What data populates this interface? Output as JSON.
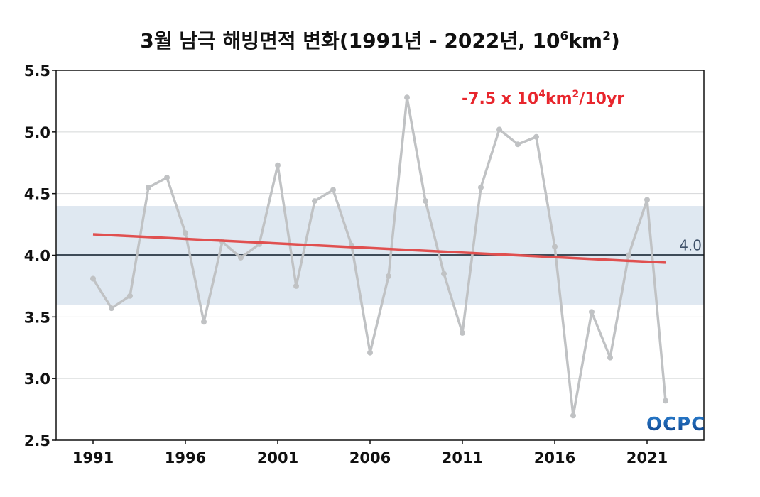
{
  "chart_data": {
    "type": "line",
    "title": {
      "prefix": "3월 남극 해빙면적 변화(1991년 - 2022년, 10",
      "sup1": "6",
      "mid": "km",
      "sup2": "2",
      "suffix": ")"
    },
    "xlabel": "",
    "ylabel": "",
    "x": [
      1991,
      1992,
      1993,
      1994,
      1995,
      1996,
      1997,
      1998,
      1999,
      2000,
      2001,
      2002,
      2003,
      2004,
      2005,
      2006,
      2007,
      2008,
      2009,
      2010,
      2011,
      2012,
      2013,
      2014,
      2015,
      2016,
      2017,
      2018,
      2019,
      2020,
      2021,
      2022
    ],
    "series": [
      {
        "values": [
          3.81,
          3.57,
          3.67,
          4.55,
          4.63,
          4.18,
          3.46,
          4.11,
          3.98,
          4.09,
          4.73,
          3.75,
          4.44,
          4.53,
          4.08,
          3.21,
          3.83,
          5.28,
          4.44,
          3.85,
          3.37,
          4.55,
          5.02,
          4.9,
          4.96,
          4.07,
          2.7,
          3.54,
          3.17,
          4.0,
          4.45,
          2.82
        ],
        "color": "#c0c2c4"
      }
    ],
    "trend": {
      "start": [
        1991,
        4.17
      ],
      "end": [
        2022,
        3.94
      ],
      "color": "#e05050",
      "label": {
        "prefix": "-7.5 x 10",
        "sup1": "4",
        "mid": "km",
        "sup2": "2",
        "suffix": "/10yr"
      }
    },
    "reference_line": {
      "value": 4.0,
      "label": "4.0",
      "color": "#3e4b58"
    },
    "normal_band": {
      "from": 3.6,
      "to": 4.4,
      "color": "#dfe8f1"
    },
    "xlim": [
      1991,
      2024
    ],
    "ylim": [
      2.5,
      5.5
    ],
    "yticks": [
      2.5,
      3.0,
      3.5,
      4.0,
      4.5,
      5.0,
      5.5
    ],
    "ytick_labels": [
      "2.5",
      "3.0",
      "3.5",
      "4.0",
      "4.5",
      "5.0",
      "5.5"
    ],
    "xticks": [
      1991,
      1996,
      2001,
      2006,
      2011,
      2016,
      2021
    ],
    "xtick_labels": [
      "1991",
      "1996",
      "2001",
      "2006",
      "2011",
      "2016",
      "2021"
    ],
    "grid": true,
    "legend": "none"
  },
  "logo": {
    "text": "OCPC"
  }
}
